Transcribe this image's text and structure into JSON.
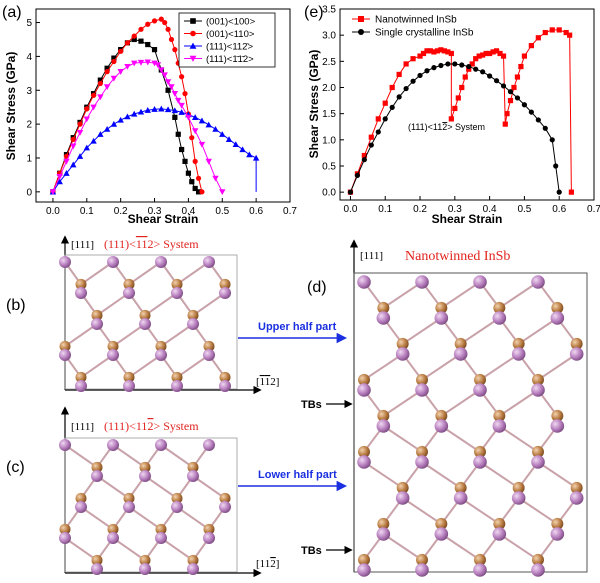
{
  "panels": {
    "a": "(a)",
    "b": "(b)",
    "c": "(c)",
    "d": "(d)",
    "e": "(e)"
  },
  "chart_data": [
    {
      "type": "line",
      "panel": "(a)",
      "xlabel": "Shear Strain",
      "ylabel": "Shear Stress (GPa)",
      "xlim": [
        -0.05,
        0.7
      ],
      "ylim": [
        -0.3,
        5.4
      ],
      "xticks": [
        "0.0",
        "0.1",
        "0.2",
        "0.3",
        "0.4",
        "0.5",
        "0.6",
        "0.7"
      ],
      "yticks": [
        "0",
        "1",
        "2",
        "3",
        "4",
        "5"
      ],
      "grid": false,
      "legend_position": "top-right",
      "series": [
        {
          "name": "(001)<100>",
          "color": "#000000",
          "marker": "square",
          "x": [
            0,
            0.02,
            0.04,
            0.06,
            0.08,
            0.1,
            0.12,
            0.14,
            0.16,
            0.18,
            0.2,
            0.22,
            0.24,
            0.26,
            0.28,
            0.3,
            0.32,
            0.34,
            0.36,
            0.37,
            0.38,
            0.39,
            0.4,
            0.41,
            0.42,
            0.43
          ],
          "y": [
            0,
            0.55,
            1.1,
            1.6,
            2.05,
            2.5,
            2.9,
            3.3,
            3.65,
            3.95,
            4.2,
            4.4,
            4.5,
            4.45,
            4.35,
            4.2,
            3.6,
            3.0,
            2.2,
            1.7,
            1.25,
            0.9,
            0.55,
            0.3,
            0.1,
            0
          ]
        },
        {
          "name": "(001)<110>",
          "color": "#ff0000",
          "marker": "circle",
          "x": [
            0,
            0.02,
            0.04,
            0.06,
            0.08,
            0.1,
            0.12,
            0.14,
            0.16,
            0.18,
            0.2,
            0.22,
            0.24,
            0.26,
            0.28,
            0.3,
            0.32,
            0.33,
            0.34,
            0.35,
            0.36,
            0.37,
            0.38,
            0.39,
            0.4,
            0.41,
            0.42,
            0.43,
            0.44
          ],
          "y": [
            0,
            0.55,
            1.05,
            1.55,
            2.0,
            2.45,
            2.85,
            3.2,
            3.55,
            3.85,
            4.15,
            4.4,
            4.6,
            4.8,
            4.95,
            5.05,
            5.1,
            5.0,
            4.8,
            4.5,
            4.2,
            3.8,
            3.4,
            2.9,
            2.3,
            1.6,
            0.9,
            0.4,
            0
          ]
        },
        {
          "name": "(111)<1 1 2bar>",
          "label": "(111)<112̄>",
          "color": "#0000ff",
          "marker": "triangle-up",
          "x": [
            0,
            0.02,
            0.04,
            0.06,
            0.08,
            0.1,
            0.12,
            0.14,
            0.16,
            0.18,
            0.2,
            0.22,
            0.24,
            0.26,
            0.28,
            0.3,
            0.32,
            0.34,
            0.36,
            0.38,
            0.4,
            0.42,
            0.44,
            0.46,
            0.48,
            0.5,
            0.52,
            0.54,
            0.56,
            0.58,
            0.6,
            0.6
          ],
          "y": [
            0,
            0.3,
            0.55,
            0.8,
            1.05,
            1.3,
            1.5,
            1.7,
            1.85,
            2.0,
            2.12,
            2.22,
            2.3,
            2.36,
            2.41,
            2.44,
            2.45,
            2.43,
            2.4,
            2.35,
            2.28,
            2.2,
            2.1,
            1.98,
            1.85,
            1.7,
            1.55,
            1.4,
            1.25,
            1.1,
            1.0,
            0
          ]
        },
        {
          "name": "(111)<1bar 1bar 2>",
          "label": "(111)<1̄1̄2>",
          "color": "#ff00ff",
          "marker": "triangle-down",
          "x": [
            0,
            0.02,
            0.04,
            0.06,
            0.08,
            0.1,
            0.12,
            0.14,
            0.16,
            0.18,
            0.2,
            0.22,
            0.24,
            0.26,
            0.28,
            0.3,
            0.31,
            0.32,
            0.33,
            0.34,
            0.35,
            0.36,
            0.37,
            0.38,
            0.4,
            0.42,
            0.44,
            0.46,
            0.48,
            0.5
          ],
          "y": [
            0,
            0.45,
            0.9,
            1.35,
            1.75,
            2.15,
            2.5,
            2.8,
            3.1,
            3.35,
            3.55,
            3.7,
            3.8,
            3.82,
            3.83,
            3.8,
            3.75,
            3.6,
            3.45,
            3.25,
            3.1,
            2.9,
            2.7,
            2.55,
            2.2,
            1.8,
            1.4,
            0.9,
            0.4,
            0
          ]
        }
      ]
    },
    {
      "type": "line",
      "panel": "(e)",
      "xlabel": "Shear Strain",
      "ylabel": "Shear Stress (GPa)",
      "xlim": [
        -0.03,
        0.7
      ],
      "ylim": [
        -0.15,
        3.5
      ],
      "xticks": [
        "0.0",
        "0.1",
        "0.2",
        "0.3",
        "0.4",
        "0.5",
        "0.6",
        "0.7"
      ],
      "yticks": [
        "0.0",
        "0.5",
        "1.0",
        "1.5",
        "2.0",
        "2.5",
        "3.0",
        "3.5"
      ],
      "grid": false,
      "legend_position": "top-left",
      "annotation": "(111)<11̅…2> System",
      "series": [
        {
          "name": "Nanotwinned InSb",
          "color": "#ff0000",
          "marker": "square",
          "x": [
            0,
            0.02,
            0.04,
            0.06,
            0.08,
            0.1,
            0.12,
            0.14,
            0.16,
            0.18,
            0.2,
            0.21,
            0.22,
            0.23,
            0.24,
            0.25,
            0.26,
            0.27,
            0.28,
            0.29,
            0.29,
            0.3,
            0.31,
            0.32,
            0.33,
            0.34,
            0.35,
            0.36,
            0.37,
            0.38,
            0.39,
            0.4,
            0.41,
            0.42,
            0.43,
            0.44,
            0.445,
            0.45,
            0.46,
            0.47,
            0.48,
            0.49,
            0.5,
            0.52,
            0.54,
            0.56,
            0.58,
            0.6,
            0.62,
            0.63,
            0.635
          ],
          "y": [
            0,
            0.35,
            0.7,
            1.05,
            1.4,
            1.7,
            2.0,
            2.25,
            2.45,
            2.55,
            2.6,
            2.65,
            2.7,
            2.7,
            2.68,
            2.7,
            2.72,
            2.7,
            2.68,
            2.65,
            1.4,
            1.6,
            1.8,
            2.0,
            2.2,
            2.35,
            2.45,
            2.55,
            2.6,
            2.62,
            2.65,
            2.65,
            2.68,
            2.7,
            2.65,
            2.6,
            1.3,
            1.5,
            1.75,
            2.0,
            2.2,
            2.4,
            2.6,
            2.8,
            2.95,
            3.05,
            3.1,
            3.1,
            3.05,
            3.0,
            0
          ]
        },
        {
          "name": "Single crystalline InSb",
          "color": "#000000",
          "marker": "circle",
          "x": [
            0,
            0.02,
            0.04,
            0.06,
            0.08,
            0.1,
            0.12,
            0.14,
            0.16,
            0.18,
            0.2,
            0.22,
            0.24,
            0.26,
            0.28,
            0.3,
            0.32,
            0.34,
            0.36,
            0.38,
            0.4,
            0.42,
            0.44,
            0.46,
            0.48,
            0.5,
            0.52,
            0.54,
            0.56,
            0.58,
            0.59,
            0.6
          ],
          "y": [
            0,
            0.32,
            0.62,
            0.9,
            1.15,
            1.4,
            1.62,
            1.82,
            1.98,
            2.12,
            2.23,
            2.32,
            2.38,
            2.42,
            2.45,
            2.45,
            2.43,
            2.4,
            2.35,
            2.3,
            2.22,
            2.13,
            2.03,
            1.92,
            1.8,
            1.67,
            1.53,
            1.38,
            1.22,
            1.0,
            0.5,
            0
          ]
        }
      ]
    }
  ],
  "structures": {
    "b": {
      "orientation": "[111]",
      "title": "(111)<1̅1̅2> System",
      "right_axis": "[1̅1̅2]",
      "arrow_label": "Upper half part"
    },
    "c": {
      "orientation": "[111]",
      "title": "(111)<112̅> System",
      "right_axis": "[112̅]",
      "arrow_label": "Lower half part"
    },
    "d": {
      "orientation": "[111]",
      "title": "Nanotwinned InSb",
      "tb_label": "TBs"
    }
  },
  "colors": {
    "atom_in": "#b07cb8",
    "atom_sb": "#b57a42",
    "bond": "#c9a1a9",
    "arrow_text": "#1a2fe0",
    "title_red": "#e1231e"
  }
}
